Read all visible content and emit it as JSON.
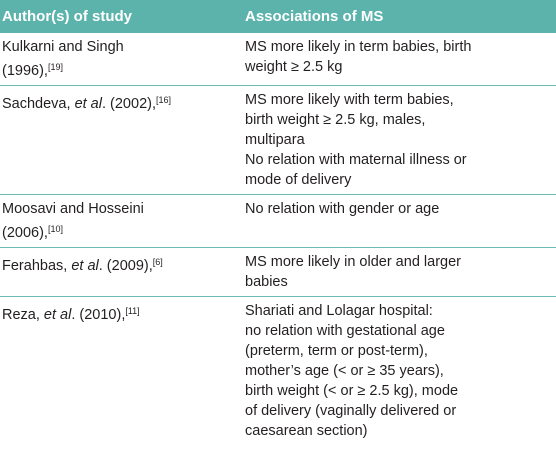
{
  "table": {
    "header": [
      "Author(s) of study",
      "Associations of MS"
    ],
    "rows": [
      [
        [
          [
            {
              "text": "Kulkarni and Singh"
            }
          ],
          [
            {
              "text": "(1996),"
            },
            {
              "text": "[19]",
              "sup": true
            }
          ]
        ],
        [
          [
            {
              "text": "MS more likely in term babies, birth"
            }
          ],
          [
            {
              "text": "weight ≥ 2.5 kg"
            }
          ]
        ]
      ],
      [
        [
          [
            {
              "text": "Sachdeva, "
            },
            {
              "text": "et al",
              "italic": true
            },
            {
              "text": ". (2002),"
            },
            {
              "text": "[16]",
              "sup": true
            }
          ]
        ],
        [
          [
            {
              "text": "MS more likely with term babies,"
            }
          ],
          [
            {
              "text": "birth weight ≥ 2.5 kg, males,"
            }
          ],
          [
            {
              "text": "multipara"
            }
          ],
          [
            {
              "text": "No relation with maternal illness or"
            }
          ],
          [
            {
              "text": "mode of delivery"
            }
          ]
        ]
      ],
      [
        [
          [
            {
              "text": "Moosavi and Hosseini"
            }
          ],
          [
            {
              "text": "(2006),"
            },
            {
              "text": "[10]",
              "sup": true
            }
          ]
        ],
        [
          [
            {
              "text": "No relation with gender or age"
            }
          ]
        ]
      ],
      [
        [
          [
            {
              "text": "Ferahbas, "
            },
            {
              "text": "et al",
              "italic": true
            },
            {
              "text": ". (2009),"
            },
            {
              "text": "[6]",
              "sup": true
            }
          ]
        ],
        [
          [
            {
              "text": "MS more likely in older and larger"
            }
          ],
          [
            {
              "text": "babies"
            }
          ]
        ]
      ],
      [
        [
          [
            {
              "text": "Reza, "
            },
            {
              "text": "et al",
              "italic": true
            },
            {
              "text": ". (2010),"
            },
            {
              "text": "[11]",
              "sup": true
            }
          ]
        ],
        [
          [
            {
              "text": "Shariati and Lolagar hospital:"
            }
          ],
          [
            {
              "text": "no relation with gestational age"
            }
          ],
          [
            {
              "text": "(preterm, term or post-term),"
            }
          ],
          [
            {
              "text": "mother’s age (< or ≥ 35 years),"
            }
          ],
          [
            {
              "text": "birth weight (< or ≥ 2.5 kg), mode"
            }
          ],
          [
            {
              "text": "of delivery (vaginally delivered or"
            }
          ],
          [
            {
              "text": "caesarean section)"
            }
          ]
        ]
      ]
    ]
  }
}
